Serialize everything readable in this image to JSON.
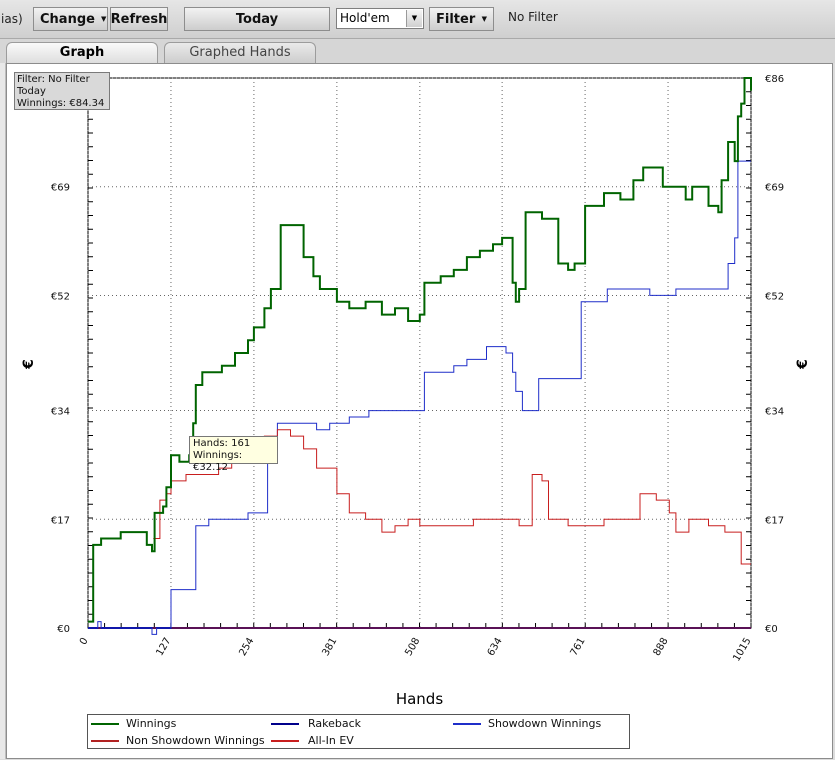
{
  "toolbar": {
    "partial_text": "ias)",
    "change_label": "Change",
    "refresh_label": "Refresh",
    "today_label": "Today",
    "game_select_value": "Hold'em",
    "filter_label": "Filter",
    "filter_status": "No Filter"
  },
  "tabs": [
    {
      "label": "Graph",
      "active": true
    },
    {
      "label": "Graphed Hands",
      "active": false
    }
  ],
  "info_box": {
    "filter": "Filter: No Filter",
    "period": "Today",
    "winnings": "Winnings: €84.34"
  },
  "tooltip": {
    "hands": "Hands: 161",
    "winnings": "Winnings: €32.12"
  },
  "chart_data": {
    "type": "line",
    "xlabel": "Hands",
    "ylabel": "€",
    "x_ticks": [
      "0",
      "127",
      "254",
      "381",
      "508",
      "634",
      "761",
      "888",
      "1015"
    ],
    "y_ticks": [
      "€0",
      "€17",
      "€34",
      "€52",
      "€69",
      "€86"
    ],
    "xlim": [
      0,
      1015
    ],
    "ylim": [
      0,
      86
    ],
    "grid": true,
    "legend_position": "bottom",
    "series": [
      {
        "name": "Winnings",
        "color": "#006400",
        "points": [
          [
            0,
            1
          ],
          [
            8,
            13
          ],
          [
            20,
            14
          ],
          [
            50,
            15
          ],
          [
            80,
            15
          ],
          [
            90,
            13
          ],
          [
            98,
            12
          ],
          [
            102,
            18
          ],
          [
            115,
            19
          ],
          [
            120,
            22
          ],
          [
            127,
            27
          ],
          [
            140,
            26
          ],
          [
            155,
            27
          ],
          [
            161,
            32
          ],
          [
            165,
            38
          ],
          [
            175,
            40
          ],
          [
            190,
            40
          ],
          [
            205,
            41
          ],
          [
            225,
            43
          ],
          [
            245,
            45
          ],
          [
            254,
            47
          ],
          [
            270,
            50
          ],
          [
            280,
            53
          ],
          [
            295,
            63
          ],
          [
            310,
            63
          ],
          [
            330,
            58
          ],
          [
            345,
            55
          ],
          [
            355,
            53
          ],
          [
            381,
            51
          ],
          [
            400,
            50
          ],
          [
            425,
            51
          ],
          [
            450,
            49
          ],
          [
            470,
            50
          ],
          [
            490,
            48
          ],
          [
            508,
            49
          ],
          [
            515,
            54
          ],
          [
            540,
            55
          ],
          [
            560,
            56
          ],
          [
            580,
            58
          ],
          [
            600,
            59
          ],
          [
            620,
            60
          ],
          [
            634,
            61
          ],
          [
            650,
            54
          ],
          [
            655,
            51
          ],
          [
            660,
            53
          ],
          [
            670,
            65
          ],
          [
            695,
            64
          ],
          [
            720,
            57
          ],
          [
            735,
            56
          ],
          [
            745,
            57
          ],
          [
            761,
            66
          ],
          [
            790,
            68
          ],
          [
            815,
            67
          ],
          [
            835,
            70
          ],
          [
            850,
            72
          ],
          [
            880,
            69
          ],
          [
            900,
            69
          ],
          [
            915,
            67
          ],
          [
            925,
            69
          ],
          [
            950,
            66
          ],
          [
            965,
            65
          ],
          [
            970,
            70
          ],
          [
            980,
            76
          ],
          [
            990,
            73
          ],
          [
            995,
            80
          ],
          [
            1000,
            82
          ],
          [
            1005,
            86
          ],
          [
            1015,
            84
          ]
        ]
      },
      {
        "name": "Rakeback",
        "color": "#00008b",
        "points": [
          [
            0,
            0
          ],
          [
            1015,
            0
          ]
        ]
      },
      {
        "name": "Showdown Winnings",
        "color": "#1f2ec9",
        "points": [
          [
            0,
            0
          ],
          [
            15,
            1
          ],
          [
            20,
            0
          ],
          [
            85,
            0
          ],
          [
            98,
            -1
          ],
          [
            105,
            0
          ],
          [
            120,
            0
          ],
          [
            127,
            6
          ],
          [
            160,
            6
          ],
          [
            165,
            16
          ],
          [
            185,
            17
          ],
          [
            230,
            17
          ],
          [
            245,
            18
          ],
          [
            270,
            18
          ],
          [
            275,
            28
          ],
          [
            290,
            32
          ],
          [
            310,
            32
          ],
          [
            350,
            31
          ],
          [
            370,
            32
          ],
          [
            400,
            33
          ],
          [
            430,
            34
          ],
          [
            495,
            34
          ],
          [
            515,
            40
          ],
          [
            560,
            41
          ],
          [
            580,
            42
          ],
          [
            610,
            44
          ],
          [
            640,
            43
          ],
          [
            650,
            40
          ],
          [
            655,
            37
          ],
          [
            665,
            34
          ],
          [
            690,
            39
          ],
          [
            735,
            39
          ],
          [
            750,
            39
          ],
          [
            755,
            51
          ],
          [
            775,
            51
          ],
          [
            790,
            51
          ],
          [
            795,
            53
          ],
          [
            820,
            53
          ],
          [
            860,
            52
          ],
          [
            880,
            52
          ],
          [
            900,
            53
          ],
          [
            940,
            53
          ],
          [
            960,
            53
          ],
          [
            980,
            57
          ],
          [
            990,
            61
          ],
          [
            995,
            73
          ],
          [
            1015,
            73
          ]
        ]
      },
      {
        "name": "Non Showdown Winnings",
        "color": "#b22222",
        "points": [
          [
            0,
            0
          ],
          [
            1015,
            0
          ]
        ]
      },
      {
        "name": "All-In EV",
        "color": "#c81e1e",
        "points": [
          [
            100,
            14
          ],
          [
            110,
            20
          ],
          [
            120,
            21
          ],
          [
            127,
            23
          ],
          [
            150,
            24
          ],
          [
            175,
            24
          ],
          [
            200,
            25
          ],
          [
            220,
            26
          ],
          [
            240,
            27
          ],
          [
            254,
            28
          ],
          [
            270,
            30
          ],
          [
            290,
            31
          ],
          [
            310,
            30
          ],
          [
            330,
            28
          ],
          [
            350,
            25
          ],
          [
            381,
            21
          ],
          [
            400,
            18
          ],
          [
            425,
            17
          ],
          [
            450,
            15
          ],
          [
            470,
            16
          ],
          [
            490,
            17
          ],
          [
            508,
            16
          ],
          [
            530,
            16
          ],
          [
            560,
            16
          ],
          [
            590,
            17
          ],
          [
            610,
            17
          ],
          [
            634,
            17
          ],
          [
            660,
            16
          ],
          [
            680,
            24
          ],
          [
            695,
            23
          ],
          [
            705,
            17
          ],
          [
            735,
            16
          ],
          [
            761,
            16
          ],
          [
            790,
            17
          ],
          [
            820,
            17
          ],
          [
            845,
            21
          ],
          [
            870,
            20
          ],
          [
            890,
            18
          ],
          [
            900,
            15
          ],
          [
            920,
            17
          ],
          [
            950,
            16
          ],
          [
            975,
            15
          ],
          [
            990,
            15
          ],
          [
            1000,
            10
          ],
          [
            1015,
            10
          ]
        ]
      }
    ]
  }
}
